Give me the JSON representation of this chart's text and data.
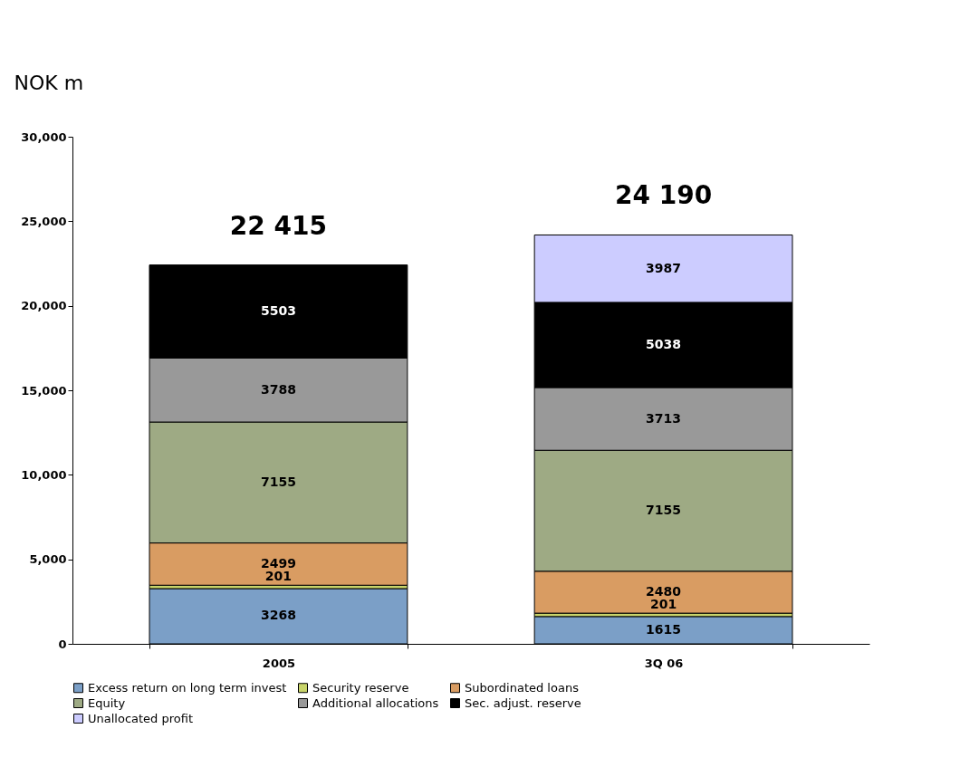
{
  "chart_data": {
    "type": "bar",
    "stacked": true,
    "data_labels": true,
    "grid": false,
    "legend": "bottom",
    "ylabel": "NOK m",
    "categories": [
      "2005",
      "3Q 06"
    ],
    "series": [
      {
        "name": "Excess return on long term invest",
        "color": "#7b9fc7",
        "values": [
          3268,
          1615
        ]
      },
      {
        "name": "Security reserve",
        "color": "#c8d46a",
        "values": [
          201,
          201
        ]
      },
      {
        "name": "Subordinated loans",
        "color": "#d99c62",
        "values": [
          2499,
          2480
        ]
      },
      {
        "name": "Equity",
        "color": "#9eaa84",
        "values": [
          7155,
          7155
        ]
      },
      {
        "name": "Additional allocations",
        "color": "#999999",
        "values": [
          3788,
          3713
        ]
      },
      {
        "name": "Sec. adjust. reserve",
        "color": "#000000",
        "values": [
          5503,
          5038
        ]
      },
      {
        "name": "Unallocated profit",
        "color": "#ccccff",
        "values": [
          null,
          3987
        ]
      }
    ],
    "totals": [
      "22 415",
      "24 190"
    ],
    "ylim": [
      0,
      30000
    ],
    "yticks": [
      0,
      {
        "value": 5000,
        "label": "5,000"
      },
      {
        "value": 10000,
        "label": "10,000"
      },
      {
        "value": 15000,
        "label": "15,000"
      },
      {
        "value": 20000,
        "label": "20,000"
      },
      {
        "value": 25000,
        "label": "25,000"
      },
      {
        "value": 30000,
        "label": "30,000"
      }
    ]
  }
}
